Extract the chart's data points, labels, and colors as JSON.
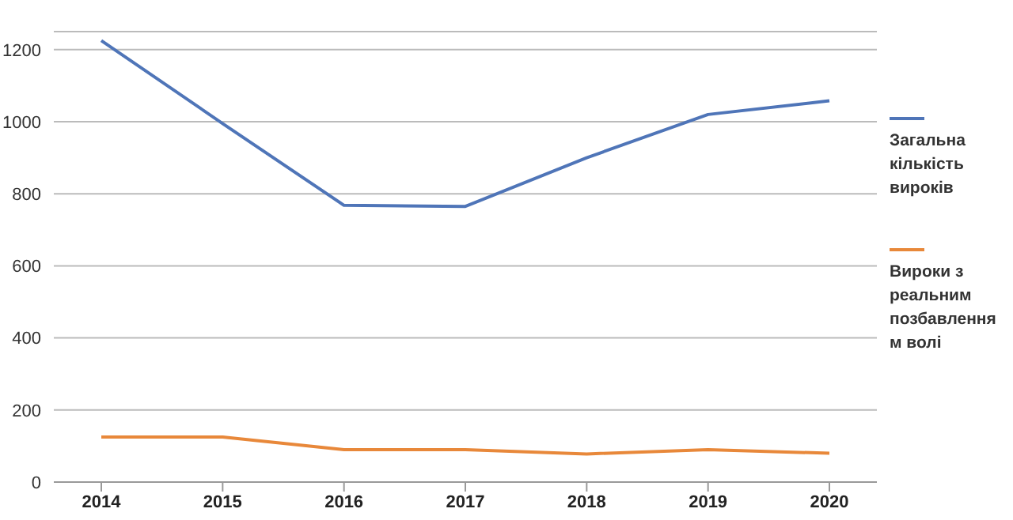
{
  "chart_data": {
    "type": "line",
    "categories": [
      "2014",
      "2015",
      "2016",
      "2017",
      "2018",
      "2019",
      "2020"
    ],
    "series": [
      {
        "name": "Загальна кількість вироків",
        "color": "#4f75b8",
        "values": [
          1225,
          995,
          768,
          765,
          900,
          1020,
          1058
        ]
      },
      {
        "name": "Вироки з реальним позбавленням волі",
        "color": "#e8883a",
        "values": [
          125,
          125,
          90,
          90,
          78,
          90,
          80
        ]
      }
    ],
    "ylim": [
      0,
      1250
    ],
    "yticks": [
      0,
      200,
      400,
      600,
      800,
      1000,
      1200
    ],
    "grid": "y",
    "legend": "right",
    "marker": "none",
    "line_style": "solid"
  }
}
